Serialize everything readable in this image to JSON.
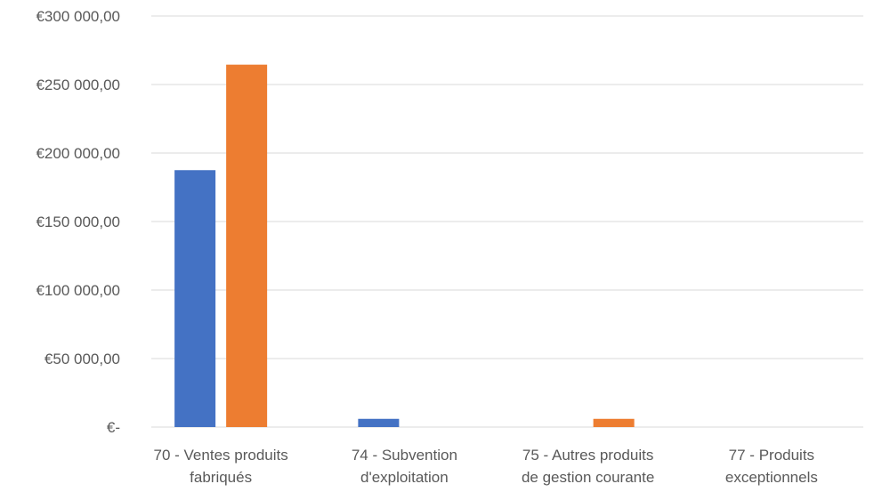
{
  "chart_data": {
    "type": "bar",
    "categories": [
      [
        "70 - Ventes produits",
        "fabriqués"
      ],
      [
        "74 - Subvention",
        "d'exploitation"
      ],
      [
        "75 - Autres produits",
        "de gestion courante"
      ],
      [
        "77 - Produits",
        "exceptionnels"
      ]
    ],
    "series": [
      {
        "color": "#4472C4",
        "values": [
          187500,
          6000,
          0,
          0
        ]
      },
      {
        "color": "#ED7D31",
        "values": [
          264500,
          0,
          6000,
          0
        ]
      }
    ],
    "yticks": [
      0,
      50000,
      100000,
      150000,
      200000,
      250000,
      300000
    ],
    "ytick_labels": [
      "€-",
      "€50 000,00",
      "€100 000,00",
      "€150 000,00",
      "€200 000,00",
      "€250 000,00",
      "€300 000,00"
    ],
    "ylim": [
      0,
      300000
    ],
    "grid": true,
    "legend": "none",
    "gridline_color": "#D9D9D9"
  }
}
